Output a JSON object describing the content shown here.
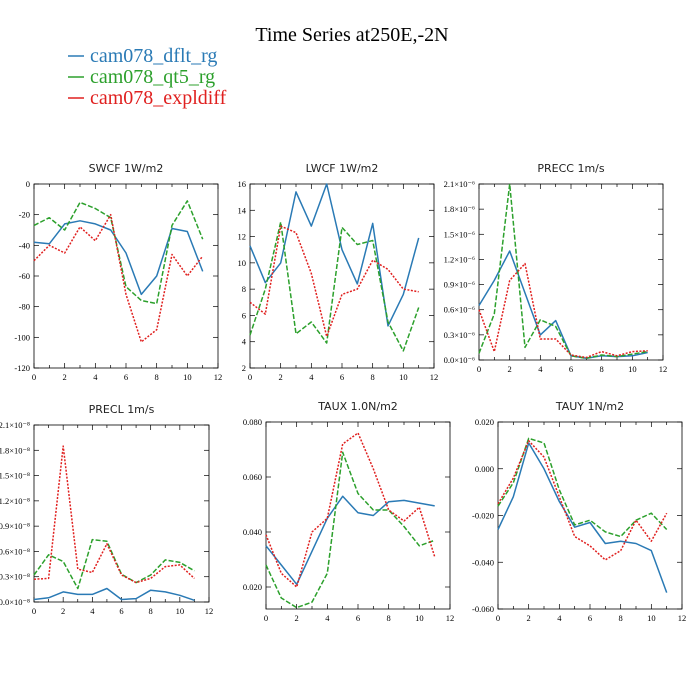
{
  "figure": {
    "title": "Time Series at250E,-2N",
    "legend": [
      {
        "name": "cam078_dflt_rg",
        "color": "#2a7ab5",
        "dash": "solid"
      },
      {
        "name": "cam078_qt5_rg",
        "color": "#2ca02c",
        "dash": "dashed"
      },
      {
        "name": "cam078_expldiff",
        "color": "#e0201f",
        "dash": "dotted"
      }
    ]
  },
  "chart_data": [
    {
      "type": "line",
      "title": "SWCF   1W/m2",
      "x": [
        0,
        1,
        2,
        3,
        4,
        5,
        6,
        7,
        8,
        9,
        10,
        11
      ],
      "xlim": [
        0,
        12
      ],
      "xticks": [
        "0",
        "2",
        "4",
        "6",
        "8",
        "10",
        "12"
      ],
      "xtick_values": [
        0,
        2,
        4,
        6,
        8,
        10,
        12
      ],
      "ylim": [
        -120,
        0
      ],
      "yticks": [
        "-120",
        "-100",
        "-80",
        "-60",
        "-40",
        "-20",
        "0"
      ],
      "ytick_values": [
        -120,
        -100,
        -80,
        -60,
        -40,
        -20,
        0
      ],
      "series": [
        {
          "values": [
            -38,
            -39,
            -26,
            -24,
            -26,
            -30,
            -45,
            -72,
            -60,
            -29,
            -31,
            -57
          ]
        },
        {
          "values": [
            -27,
            -22,
            -30,
            -12,
            -16,
            -22,
            -67,
            -76,
            -78,
            -27,
            -11,
            -36
          ]
        },
        {
          "values": [
            -50,
            -40,
            -45,
            -28,
            -37,
            -20,
            -72,
            -103,
            -95,
            -46,
            -60,
            -47
          ]
        }
      ]
    },
    {
      "type": "line",
      "title": "LWCF   1W/m2",
      "x": [
        0,
        1,
        2,
        3,
        4,
        5,
        6,
        7,
        8,
        9,
        10,
        11
      ],
      "xlim": [
        0,
        12
      ],
      "xticks": [
        "0",
        "2",
        "4",
        "6",
        "8",
        "10",
        "12"
      ],
      "xtick_values": [
        0,
        2,
        4,
        6,
        8,
        10,
        12
      ],
      "ylim": [
        2,
        16
      ],
      "yticks": [
        "2",
        "4",
        "6",
        "8",
        "10",
        "12",
        "14",
        "16"
      ],
      "ytick_values": [
        2,
        4,
        6,
        8,
        10,
        12,
        14,
        16
      ],
      "series": [
        {
          "values": [
            11.3,
            8.5,
            10,
            15.4,
            12.8,
            16,
            11,
            8.4,
            13,
            5.2,
            7.6,
            11.9
          ]
        },
        {
          "values": [
            4.5,
            8,
            13.1,
            4.6,
            5.5,
            3.9,
            12.7,
            11.4,
            11.7,
            5.5,
            3.3,
            6.6
          ]
        },
        {
          "values": [
            7,
            6.1,
            12.8,
            12.3,
            9.2,
            4.4,
            7.6,
            8,
            10.2,
            9.5,
            8,
            7.8
          ]
        }
      ]
    },
    {
      "type": "line",
      "title": "PRECC   1m/s",
      "x": [
        0,
        1,
        2,
        3,
        4,
        5,
        6,
        7,
        8,
        9,
        10,
        11
      ],
      "xlim": [
        0,
        12
      ],
      "xticks": [
        "0",
        "2",
        "4",
        "6",
        "8",
        "10",
        "12"
      ],
      "xtick_values": [
        0,
        2,
        4,
        6,
        8,
        10,
        12
      ],
      "ylim": [
        0,
        2.1
      ],
      "yticks": [
        "0.0×10⁻⁶",
        "0.3×10⁻⁶",
        "0.6×10⁻⁶",
        "0.9×10⁻⁶",
        "1.2×10⁻⁶",
        "1.5×10⁻⁶",
        "1.8×10⁻⁶",
        "2.1×10⁻⁶"
      ],
      "ytick_values": [
        0,
        0.3,
        0.6,
        0.9,
        1.2,
        1.5,
        1.8,
        2.1
      ],
      "series": [
        {
          "values": [
            0.65,
            0.95,
            1.3,
            0.8,
            0.3,
            0.47,
            0.05,
            0.02,
            0.05,
            0.04,
            0.05,
            0.09
          ]
        },
        {
          "values": [
            0.08,
            0.55,
            2.1,
            0.15,
            0.48,
            0.4,
            0.05,
            0.02,
            0.06,
            0.04,
            0.07,
            0.1
          ]
        },
        {
          "values": [
            0.6,
            0.1,
            0.95,
            1.15,
            0.25,
            0.25,
            0.06,
            0.03,
            0.1,
            0.05,
            0.1,
            0.11
          ]
        }
      ]
    },
    {
      "type": "line",
      "title": "PRECL   1m/s",
      "x": [
        0,
        1,
        2,
        3,
        4,
        5,
        6,
        7,
        8,
        9,
        10,
        11
      ],
      "xlim": [
        0,
        12
      ],
      "xticks": [
        "0",
        "2",
        "4",
        "6",
        "8",
        "10",
        "12"
      ],
      "xtick_values": [
        0,
        2,
        4,
        6,
        8,
        10,
        12
      ],
      "ylim": [
        0,
        2.1
      ],
      "yticks": [
        "0.0×10⁻⁸",
        "0.3×10⁻⁸",
        "0.6×10⁻⁸",
        "0.9×10⁻⁸",
        "1.2×10⁻⁸",
        "1.5×10⁻⁸",
        "1.8×10⁻⁸",
        "2.1×10⁻⁸"
      ],
      "ytick_values": [
        0,
        0.3,
        0.6,
        0.9,
        1.2,
        1.5,
        1.8,
        2.1
      ],
      "series": [
        {
          "values": [
            0.03,
            0.05,
            0.12,
            0.09,
            0.09,
            0.16,
            0.03,
            0.04,
            0.14,
            0.12,
            0.08,
            0.02
          ]
        },
        {
          "values": [
            0.32,
            0.56,
            0.48,
            0.16,
            0.74,
            0.72,
            0.33,
            0.23,
            0.32,
            0.5,
            0.47,
            0.37
          ]
        },
        {
          "values": [
            0.27,
            0.28,
            1.85,
            0.39,
            0.35,
            0.69,
            0.32,
            0.23,
            0.28,
            0.42,
            0.44,
            0.28
          ]
        }
      ]
    },
    {
      "type": "line",
      "title": "TAUX   1.0N/m2",
      "x": [
        0,
        1,
        2,
        3,
        4,
        5,
        6,
        7,
        8,
        9,
        10,
        11
      ],
      "xlim": [
        0,
        12
      ],
      "xticks": [
        "0",
        "2",
        "4",
        "6",
        "8",
        "10",
        "12"
      ],
      "xtick_values": [
        0,
        2,
        4,
        6,
        8,
        10,
        12
      ],
      "ylim": [
        0.012,
        0.08
      ],
      "yticks": [
        "0.020",
        "0.040",
        "0.060",
        "0.080"
      ],
      "ytick_values": [
        0.02,
        0.04,
        0.06,
        0.08
      ],
      "series": [
        {
          "values": [
            0.035,
            0.028,
            0.021,
            0.033,
            0.045,
            0.053,
            0.047,
            0.046,
            0.051,
            0.0515,
            0.0505,
            0.0495
          ]
        },
        {
          "values": [
            0.028,
            0.016,
            0.0125,
            0.0145,
            0.025,
            0.069,
            0.054,
            0.048,
            0.048,
            0.042,
            0.035,
            0.037
          ]
        },
        {
          "values": [
            0.039,
            0.025,
            0.02,
            0.04,
            0.045,
            0.072,
            0.076,
            0.063,
            0.048,
            0.044,
            0.049,
            0.031
          ]
        }
      ]
    },
    {
      "type": "line",
      "title": "TAUY   1N/m2",
      "x": [
        0,
        1,
        2,
        3,
        4,
        5,
        6,
        7,
        8,
        9,
        10,
        11
      ],
      "xlim": [
        0,
        12
      ],
      "xticks": [
        "0",
        "2",
        "4",
        "6",
        "8",
        "10",
        "12"
      ],
      "xtick_values": [
        0,
        2,
        4,
        6,
        8,
        10,
        12
      ],
      "ylim": [
        -0.06,
        0.02
      ],
      "yticks": [
        "-0.060",
        "-0.040",
        "-0.020",
        "0.000",
        "0.020"
      ],
      "ytick_values": [
        -0.06,
        -0.04,
        -0.02,
        0,
        0.02
      ],
      "series": [
        {
          "values": [
            -0.026,
            -0.012,
            0.011,
            0.0,
            -0.014,
            -0.025,
            -0.023,
            -0.032,
            -0.031,
            -0.032,
            -0.035,
            -0.053
          ]
        },
        {
          "values": [
            -0.016,
            -0.006,
            0.013,
            0.011,
            -0.009,
            -0.024,
            -0.022,
            -0.027,
            -0.029,
            -0.022,
            -0.019,
            -0.026
          ]
        },
        {
          "values": [
            -0.015,
            -0.004,
            0.012,
            0.005,
            -0.012,
            -0.029,
            -0.033,
            -0.039,
            -0.035,
            -0.022,
            -0.031,
            -0.019
          ]
        }
      ]
    }
  ]
}
